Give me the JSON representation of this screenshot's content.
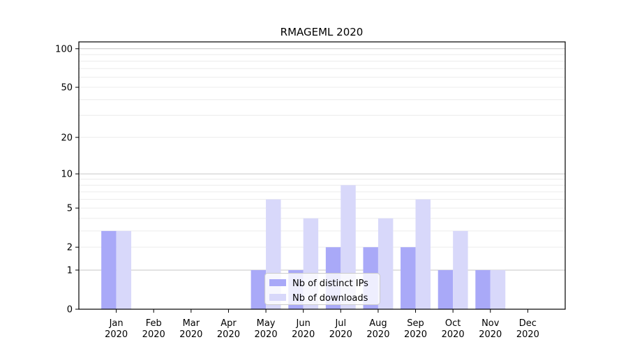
{
  "chart_data": {
    "type": "bar",
    "title": "RMAGEML 2020",
    "yscale": "log1p",
    "categories": [
      "Jan 2020",
      "Feb 2020",
      "Mar 2020",
      "Apr 2020",
      "May 2020",
      "Jun 2020",
      "Jul 2020",
      "Aug 2020",
      "Sep 2020",
      "Oct 2020",
      "Nov 2020",
      "Dec 2020"
    ],
    "series": [
      {
        "name": "Nb of distinct IPs",
        "color": "#a9a9f8",
        "values": [
          3,
          0,
          0,
          0,
          1,
          1,
          2,
          2,
          2,
          1,
          1,
          0
        ]
      },
      {
        "name": "Nb of downloads",
        "color": "#d8d8fa",
        "values": [
          3,
          0,
          0,
          0,
          6,
          4,
          8,
          4,
          6,
          3,
          1,
          0
        ]
      }
    ],
    "yticks": [
      0,
      1,
      2,
      5,
      10,
      20,
      50,
      100
    ],
    "ylim": [
      0,
      113
    ],
    "grid": "horizontal log major+minor",
    "legend_position": "inside lower center",
    "colors": {
      "major_gridline": "#c6c6c6",
      "minor_gridline": "#ececec",
      "spine": "#000000"
    }
  }
}
